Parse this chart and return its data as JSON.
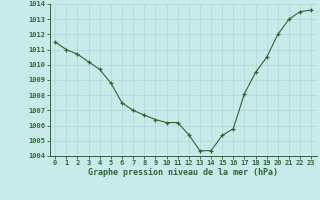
{
  "x": [
    0,
    1,
    2,
    3,
    4,
    5,
    6,
    7,
    8,
    9,
    10,
    11,
    12,
    13,
    14,
    15,
    16,
    17,
    18,
    19,
    20,
    21,
    22,
    23
  ],
  "y": [
    1011.5,
    1011.0,
    1010.7,
    1010.2,
    1009.7,
    1008.8,
    1007.5,
    1007.0,
    1006.7,
    1006.4,
    1006.2,
    1006.2,
    1005.4,
    1004.35,
    1004.35,
    1005.35,
    1005.8,
    1008.1,
    1009.5,
    1010.5,
    1012.0,
    1013.0,
    1013.5,
    1013.6
  ],
  "line_color": "#2d6a2d",
  "marker_color": "#2d6a2d",
  "bg_color": "#c8eaea",
  "grid_color": "#b0d8d8",
  "xlabel": "Graphe pression niveau de la mer (hPa)",
  "xlabel_color": "#2d6a2d",
  "tick_color": "#2d6a2d",
  "ylim": [
    1004,
    1014
  ],
  "xlim_min": -0.5,
  "xlim_max": 23.5,
  "yticks": [
    1004,
    1005,
    1006,
    1007,
    1008,
    1009,
    1010,
    1011,
    1012,
    1013,
    1014
  ],
  "xticks": [
    0,
    1,
    2,
    3,
    4,
    5,
    6,
    7,
    8,
    9,
    10,
    11,
    12,
    13,
    14,
    15,
    16,
    17,
    18,
    19,
    20,
    21,
    22,
    23
  ],
  "tick_fontsize": 5.0,
  "xlabel_fontsize": 6.0
}
